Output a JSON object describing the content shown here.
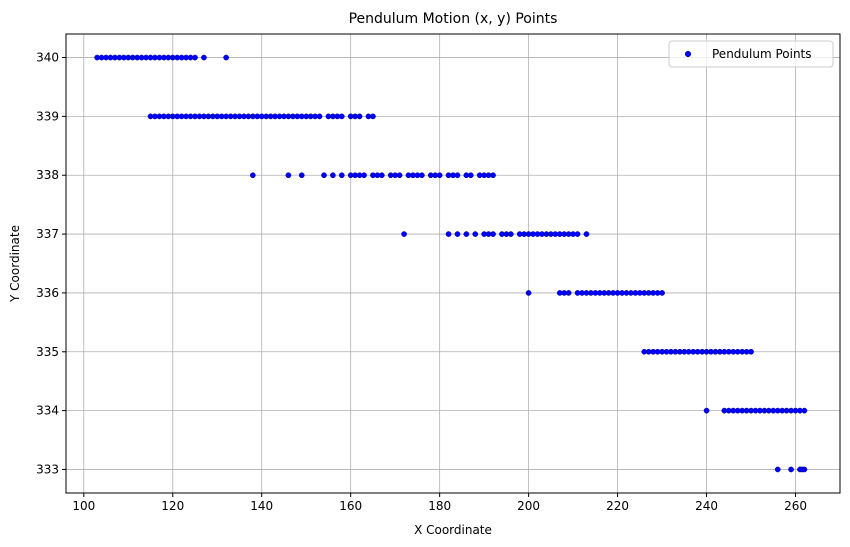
{
  "chart_data": {
    "type": "scatter",
    "title": "Pendulum Motion (x, y) Points",
    "xlabel": "X Coordinate",
    "ylabel": "Y Coordinate",
    "xlim": [
      96,
      270
    ],
    "ylim": [
      332.6,
      340.4
    ],
    "xticks": [
      100,
      120,
      140,
      160,
      180,
      200,
      220,
      240,
      260
    ],
    "yticks": [
      333,
      334,
      335,
      336,
      337,
      338,
      339,
      340
    ],
    "grid": true,
    "legend_position": "top-right",
    "marker_color": "#0000ff",
    "series": [
      {
        "name": "Pendulum Points",
        "points": [
          [
            103,
            340
          ],
          [
            104,
            340
          ],
          [
            105,
            340
          ],
          [
            106,
            340
          ],
          [
            107,
            340
          ],
          [
            108,
            340
          ],
          [
            109,
            340
          ],
          [
            110,
            340
          ],
          [
            111,
            340
          ],
          [
            112,
            340
          ],
          [
            113,
            340
          ],
          [
            114,
            340
          ],
          [
            115,
            340
          ],
          [
            116,
            340
          ],
          [
            117,
            340
          ],
          [
            118,
            340
          ],
          [
            119,
            340
          ],
          [
            120,
            340
          ],
          [
            121,
            340
          ],
          [
            122,
            340
          ],
          [
            123,
            340
          ],
          [
            124,
            340
          ],
          [
            125,
            340
          ],
          [
            127,
            340
          ],
          [
            132,
            340
          ],
          [
            115,
            339
          ],
          [
            116,
            339
          ],
          [
            117,
            339
          ],
          [
            118,
            339
          ],
          [
            119,
            339
          ],
          [
            120,
            339
          ],
          [
            121,
            339
          ],
          [
            122,
            339
          ],
          [
            123,
            339
          ],
          [
            124,
            339
          ],
          [
            125,
            339
          ],
          [
            126,
            339
          ],
          [
            127,
            339
          ],
          [
            128,
            339
          ],
          [
            129,
            339
          ],
          [
            130,
            339
          ],
          [
            131,
            339
          ],
          [
            132,
            339
          ],
          [
            133,
            339
          ],
          [
            134,
            339
          ],
          [
            135,
            339
          ],
          [
            136,
            339
          ],
          [
            137,
            339
          ],
          [
            138,
            339
          ],
          [
            139,
            339
          ],
          [
            140,
            339
          ],
          [
            141,
            339
          ],
          [
            142,
            339
          ],
          [
            143,
            339
          ],
          [
            144,
            339
          ],
          [
            145,
            339
          ],
          [
            146,
            339
          ],
          [
            147,
            339
          ],
          [
            148,
            339
          ],
          [
            149,
            339
          ],
          [
            150,
            339
          ],
          [
            151,
            339
          ],
          [
            152,
            339
          ],
          [
            153,
            339
          ],
          [
            155,
            339
          ],
          [
            156,
            339
          ],
          [
            157,
            339
          ],
          [
            158,
            339
          ],
          [
            160,
            339
          ],
          [
            161,
            339
          ],
          [
            162,
            339
          ],
          [
            164,
            339
          ],
          [
            165,
            339
          ],
          [
            138,
            338
          ],
          [
            146,
            338
          ],
          [
            149,
            338
          ],
          [
            154,
            338
          ],
          [
            156,
            338
          ],
          [
            158,
            338
          ],
          [
            160,
            338
          ],
          [
            161,
            338
          ],
          [
            162,
            338
          ],
          [
            163,
            338
          ],
          [
            165,
            338
          ],
          [
            166,
            338
          ],
          [
            167,
            338
          ],
          [
            169,
            338
          ],
          [
            170,
            338
          ],
          [
            171,
            338
          ],
          [
            173,
            338
          ],
          [
            174,
            338
          ],
          [
            175,
            338
          ],
          [
            176,
            338
          ],
          [
            178,
            338
          ],
          [
            179,
            338
          ],
          [
            180,
            338
          ],
          [
            182,
            338
          ],
          [
            183,
            338
          ],
          [
            184,
            338
          ],
          [
            186,
            338
          ],
          [
            187,
            338
          ],
          [
            189,
            338
          ],
          [
            190,
            338
          ],
          [
            191,
            338
          ],
          [
            192,
            338
          ],
          [
            172,
            337
          ],
          [
            182,
            337
          ],
          [
            184,
            337
          ],
          [
            186,
            337
          ],
          [
            188,
            337
          ],
          [
            190,
            337
          ],
          [
            191,
            337
          ],
          [
            192,
            337
          ],
          [
            194,
            337
          ],
          [
            195,
            337
          ],
          [
            196,
            337
          ],
          [
            198,
            337
          ],
          [
            199,
            337
          ],
          [
            200,
            337
          ],
          [
            201,
            337
          ],
          [
            202,
            337
          ],
          [
            203,
            337
          ],
          [
            204,
            337
          ],
          [
            205,
            337
          ],
          [
            206,
            337
          ],
          [
            207,
            337
          ],
          [
            208,
            337
          ],
          [
            209,
            337
          ],
          [
            210,
            337
          ],
          [
            211,
            337
          ],
          [
            213,
            337
          ],
          [
            200,
            336
          ],
          [
            207,
            336
          ],
          [
            208,
            336
          ],
          [
            209,
            336
          ],
          [
            211,
            336
          ],
          [
            212,
            336
          ],
          [
            213,
            336
          ],
          [
            214,
            336
          ],
          [
            215,
            336
          ],
          [
            216,
            336
          ],
          [
            217,
            336
          ],
          [
            218,
            336
          ],
          [
            219,
            336
          ],
          [
            220,
            336
          ],
          [
            221,
            336
          ],
          [
            222,
            336
          ],
          [
            223,
            336
          ],
          [
            224,
            336
          ],
          [
            225,
            336
          ],
          [
            226,
            336
          ],
          [
            227,
            336
          ],
          [
            228,
            336
          ],
          [
            229,
            336
          ],
          [
            230,
            336
          ],
          [
            226,
            335
          ],
          [
            227,
            335
          ],
          [
            228,
            335
          ],
          [
            229,
            335
          ],
          [
            230,
            335
          ],
          [
            231,
            335
          ],
          [
            232,
            335
          ],
          [
            233,
            335
          ],
          [
            234,
            335
          ],
          [
            235,
            335
          ],
          [
            236,
            335
          ],
          [
            237,
            335
          ],
          [
            238,
            335
          ],
          [
            239,
            335
          ],
          [
            240,
            335
          ],
          [
            241,
            335
          ],
          [
            242,
            335
          ],
          [
            243,
            335
          ],
          [
            244,
            335
          ],
          [
            245,
            335
          ],
          [
            246,
            335
          ],
          [
            247,
            335
          ],
          [
            248,
            335
          ],
          [
            249,
            335
          ],
          [
            250,
            335
          ],
          [
            240,
            334
          ],
          [
            244,
            334
          ],
          [
            245,
            334
          ],
          [
            246,
            334
          ],
          [
            247,
            334
          ],
          [
            248,
            334
          ],
          [
            249,
            334
          ],
          [
            250,
            334
          ],
          [
            251,
            334
          ],
          [
            252,
            334
          ],
          [
            253,
            334
          ],
          [
            254,
            334
          ],
          [
            255,
            334
          ],
          [
            256,
            334
          ],
          [
            257,
            334
          ],
          [
            258,
            334
          ],
          [
            259,
            334
          ],
          [
            260,
            334
          ],
          [
            261,
            334
          ],
          [
            262,
            334
          ],
          [
            256,
            333
          ],
          [
            259,
            333
          ],
          [
            261,
            333
          ],
          [
            261.5,
            333
          ],
          [
            262,
            333
          ]
        ]
      }
    ]
  }
}
